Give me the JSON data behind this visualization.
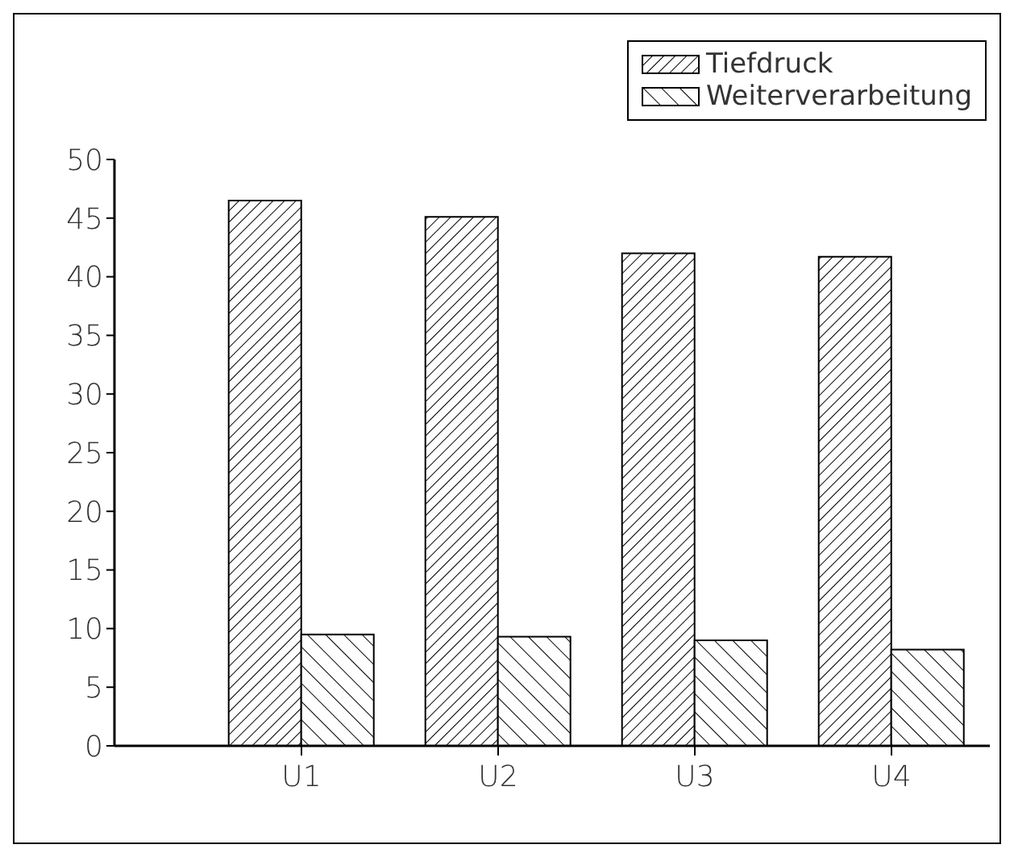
{
  "chart_data": {
    "type": "bar",
    "categories": [
      "U1",
      "U2",
      "U3",
      "U4"
    ],
    "series": [
      {
        "name": "Tiefdruck",
        "color": "#000000",
        "values": [
          46.5,
          45.1,
          42.0,
          41.7
        ]
      },
      {
        "name": "Weiterverarbeitung",
        "color": "#000000",
        "values": [
          9.5,
          9.3,
          9.0,
          8.2
        ]
      }
    ],
    "ylim": [
      0,
      50
    ],
    "yticks": [
      0,
      5,
      10,
      15,
      20,
      25,
      30,
      35,
      40,
      45,
      50
    ],
    "grid": false,
    "legend": "top right"
  }
}
